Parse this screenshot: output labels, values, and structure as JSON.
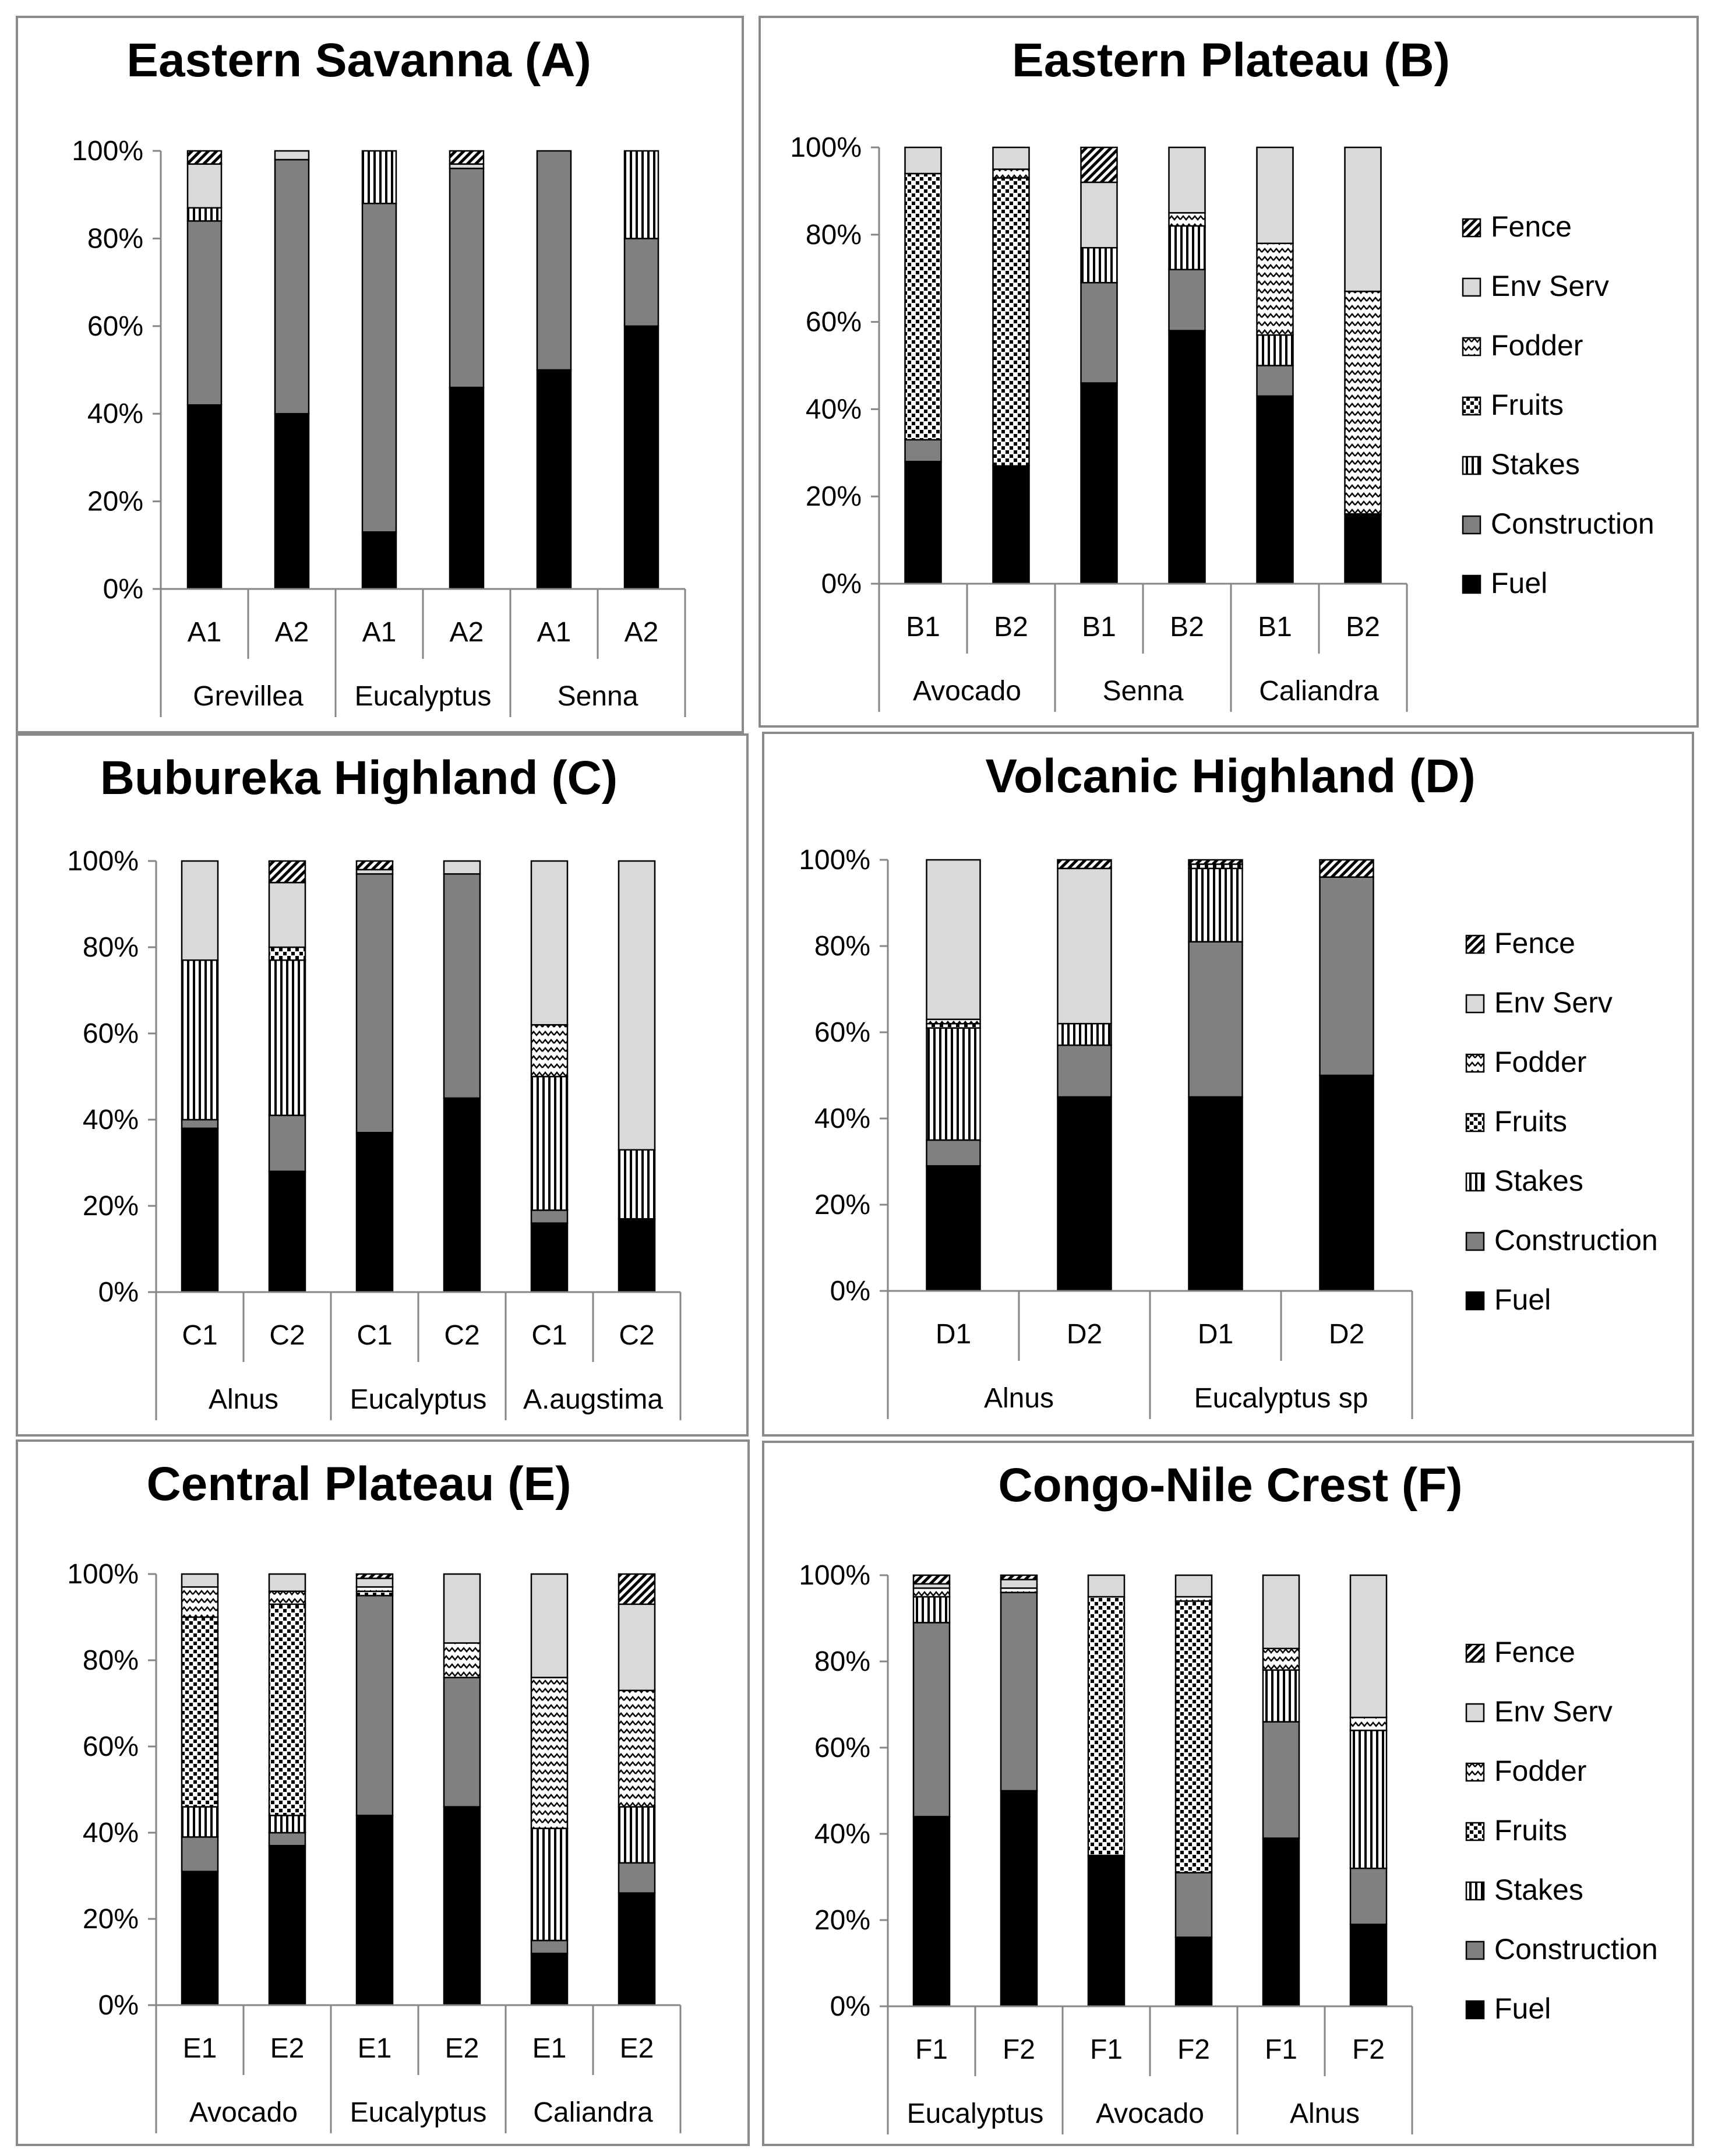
{
  "legend_order": [
    "Fence",
    "Env Serv",
    "Fodder",
    "Fruits",
    "Stakes",
    "Construction",
    "Fuel"
  ],
  "series_styles": {
    "Fuel": {
      "fill": "#000000"
    },
    "Construction": {
      "fill": "#808080"
    },
    "Stakes": {
      "fill": "#ffffff",
      "pattern": "vstripes"
    },
    "Fruits": {
      "fill": "#ffffff",
      "pattern": "checker"
    },
    "Fodder": {
      "fill": "#ffffff",
      "pattern": "zigzag"
    },
    "Env Serv": {
      "fill": "#d9d9d9"
    },
    "Fence": {
      "fill": "#ffffff",
      "pattern": "diag"
    }
  },
  "chart_data": [
    {
      "type": "bar",
      "stacked": true,
      "title": "Eastern Savanna (A)",
      "legend": false,
      "categories": [
        "A1",
        "A2",
        "A1",
        "A2",
        "A1",
        "A2"
      ],
      "groups": [
        "Grevillea",
        "Eucalyptus",
        "Senna"
      ],
      "ylim": [
        0,
        100
      ],
      "yticks": [
        "0%",
        "20%",
        "40%",
        "60%",
        "80%",
        "100%"
      ],
      "series": [
        {
          "name": "Fuel",
          "values": [
            42,
            40,
            13,
            46,
            50,
            60
          ]
        },
        {
          "name": "Construction",
          "values": [
            42,
            58,
            75,
            50,
            50,
            20
          ]
        },
        {
          "name": "Stakes",
          "values": [
            3,
            0,
            12,
            0,
            0,
            20
          ]
        },
        {
          "name": "Fruits",
          "values": [
            0,
            0,
            0,
            0,
            0,
            0
          ]
        },
        {
          "name": "Fodder",
          "values": [
            0,
            0,
            0,
            0,
            0,
            0
          ]
        },
        {
          "name": "Env Serv",
          "values": [
            10,
            2,
            0,
            1,
            0,
            0
          ]
        },
        {
          "name": "Fence",
          "values": [
            3,
            0,
            0,
            3,
            0,
            0
          ]
        }
      ]
    },
    {
      "type": "bar",
      "stacked": true,
      "title": "Eastern Plateau (B)",
      "legend": true,
      "categories": [
        "B1",
        "B2",
        "B1",
        "B2",
        "B1",
        "B2"
      ],
      "groups": [
        "Avocado",
        "Senna",
        "Caliandra"
      ],
      "ylim": [
        0,
        100
      ],
      "yticks": [
        "0%",
        "20%",
        "40%",
        "60%",
        "80%",
        "100%"
      ],
      "series": [
        {
          "name": "Fuel",
          "values": [
            28,
            27,
            46,
            58,
            43,
            16
          ]
        },
        {
          "name": "Construction",
          "values": [
            5,
            0,
            23,
            14,
            7,
            0
          ]
        },
        {
          "name": "Stakes",
          "values": [
            0,
            0,
            8,
            10,
            7,
            0
          ]
        },
        {
          "name": "Fruits",
          "values": [
            61,
            66,
            0,
            0,
            0,
            0
          ]
        },
        {
          "name": "Fodder",
          "values": [
            0,
            2,
            0,
            3,
            21,
            51
          ]
        },
        {
          "name": "Env Serv",
          "values": [
            6,
            5,
            15,
            15,
            22,
            33
          ]
        },
        {
          "name": "Fence",
          "values": [
            0,
            0,
            8,
            0,
            0,
            0
          ]
        }
      ]
    },
    {
      "type": "bar",
      "stacked": true,
      "title": "Bubureka Highland (C)",
      "legend": false,
      "categories": [
        "C1",
        "C2",
        "C1",
        "C2",
        "C1",
        "C2"
      ],
      "groups": [
        "Alnus",
        "Eucalyptus",
        "A.augstima"
      ],
      "ylim": [
        0,
        100
      ],
      "yticks": [
        "0%",
        "20%",
        "40%",
        "60%",
        "80%",
        "100%"
      ],
      "series": [
        {
          "name": "Fuel",
          "values": [
            38,
            28,
            37,
            45,
            16,
            17
          ]
        },
        {
          "name": "Construction",
          "values": [
            2,
            13,
            60,
            52,
            3,
            0
          ]
        },
        {
          "name": "Stakes",
          "values": [
            37,
            36,
            0,
            0,
            31,
            16
          ]
        },
        {
          "name": "Fruits",
          "values": [
            0,
            3,
            0,
            0,
            0,
            0
          ]
        },
        {
          "name": "Fodder",
          "values": [
            0,
            0,
            0,
            0,
            12,
            0
          ]
        },
        {
          "name": "Env Serv",
          "values": [
            23,
            15,
            1,
            3,
            38,
            67
          ]
        },
        {
          "name": "Fence",
          "values": [
            0,
            5,
            2,
            0,
            0,
            0
          ]
        }
      ]
    },
    {
      "type": "bar",
      "stacked": true,
      "title": "Volcanic Highland (D)",
      "legend": true,
      "categories": [
        "D1",
        "D2",
        "D1",
        "D2"
      ],
      "groups": [
        "Alnus",
        "Eucalyptus sp"
      ],
      "ylim": [
        0,
        100
      ],
      "yticks": [
        "0%",
        "20%",
        "40%",
        "60%",
        "80%",
        "100%"
      ],
      "series": [
        {
          "name": "Fuel",
          "values": [
            29,
            45,
            45,
            50
          ]
        },
        {
          "name": "Construction",
          "values": [
            6,
            12,
            36,
            46
          ]
        },
        {
          "name": "Stakes",
          "values": [
            26,
            5,
            17,
            0
          ]
        },
        {
          "name": "Fruits",
          "values": [
            1,
            0,
            1,
            0
          ]
        },
        {
          "name": "Fodder",
          "values": [
            1,
            0,
            0,
            0
          ]
        },
        {
          "name": "Env Serv",
          "values": [
            37,
            36,
            0,
            0
          ]
        },
        {
          "name": "Fence",
          "values": [
            0,
            2,
            1,
            4
          ]
        }
      ]
    },
    {
      "type": "bar",
      "stacked": true,
      "title": "Central Plateau (E)",
      "legend": false,
      "categories": [
        "E1",
        "E2",
        "E1",
        "E2",
        "E1",
        "E2"
      ],
      "groups": [
        "Avocado",
        "Eucalyptus",
        "Caliandra"
      ],
      "ylim": [
        0,
        100
      ],
      "yticks": [
        "0%",
        "20%",
        "40%",
        "60%",
        "80%",
        "100%"
      ],
      "series": [
        {
          "name": "Fuel",
          "values": [
            31,
            37,
            44,
            46,
            12,
            26
          ]
        },
        {
          "name": "Construction",
          "values": [
            8,
            3,
            51,
            30,
            3,
            7
          ]
        },
        {
          "name": "Stakes",
          "values": [
            7,
            4,
            0,
            0,
            26,
            13
          ]
        },
        {
          "name": "Fruits",
          "values": [
            44,
            49,
            1,
            0,
            0,
            0
          ]
        },
        {
          "name": "Fodder",
          "values": [
            7,
            3,
            1,
            8,
            35,
            27
          ]
        },
        {
          "name": "Env Serv",
          "values": [
            3,
            4,
            2,
            16,
            24,
            20
          ]
        },
        {
          "name": "Fence",
          "values": [
            0,
            0,
            1,
            0,
            0,
            7
          ]
        }
      ]
    },
    {
      "type": "bar",
      "stacked": true,
      "title": "Congo-Nile Crest (F)",
      "legend": true,
      "categories": [
        "F1",
        "F2",
        "F1",
        "F2",
        "F1",
        "F2"
      ],
      "groups": [
        "Eucalyptus",
        "Avocado",
        "Alnus"
      ],
      "ylim": [
        0,
        100
      ],
      "yticks": [
        "0%",
        "20%",
        "40%",
        "60%",
        "80%",
        "100%"
      ],
      "series": [
        {
          "name": "Fuel",
          "values": [
            44,
            50,
            35,
            16,
            39,
            19
          ]
        },
        {
          "name": "Construction",
          "values": [
            45,
            46,
            0,
            15,
            27,
            13
          ]
        },
        {
          "name": "Stakes",
          "values": [
            6,
            0,
            0,
            0,
            12,
            32
          ]
        },
        {
          "name": "Fruits",
          "values": [
            0,
            0,
            60,
            63,
            0,
            0
          ]
        },
        {
          "name": "Fodder",
          "values": [
            2,
            1,
            0,
            1,
            5,
            3
          ]
        },
        {
          "name": "Env Serv",
          "values": [
            1,
            2,
            5,
            5,
            17,
            33
          ]
        },
        {
          "name": "Fence",
          "values": [
            2,
            1,
            0,
            0,
            0,
            0
          ]
        }
      ]
    }
  ]
}
